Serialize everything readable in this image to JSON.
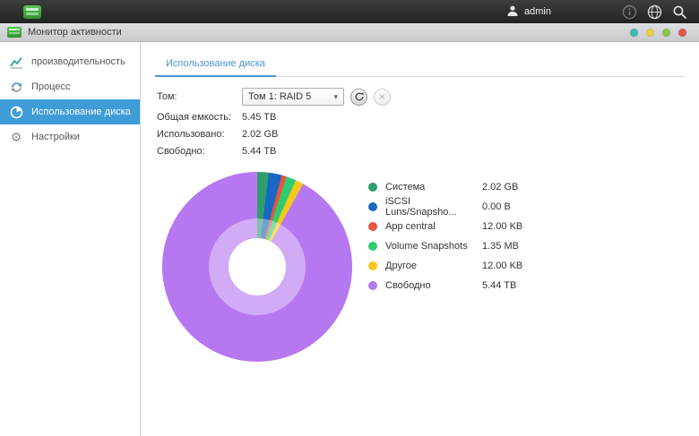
{
  "topbar": {
    "user": "admin",
    "icons": {
      "logo": "app-logo-icon",
      "user": "user-icon",
      "info": "info-icon",
      "globe": "globe-icon",
      "search": "search-icon"
    }
  },
  "window": {
    "title": "Монитор активности",
    "controls": {
      "teal": "#3fb9b4",
      "yellow": "#e6d04a",
      "green": "#8bc34a",
      "red": "#e2574c"
    }
  },
  "sidebar": {
    "items": [
      {
        "label": "производительность",
        "selected": false
      },
      {
        "label": "Процесс",
        "selected": false
      },
      {
        "label": "Использование диска",
        "selected": true
      },
      {
        "label": "Настройки",
        "selected": false
      }
    ]
  },
  "main": {
    "tab": "Использование диска",
    "form": {
      "volume_label": "Том:",
      "volume_value": "Том 1: RAID 5",
      "capacity_label": "Общая емкость:",
      "capacity_value": "5.45 TB",
      "used_label": "Использовано:",
      "used_value": "2.02 GB",
      "free_label": "Свободно:",
      "free_value": "5.44 TB"
    }
  },
  "chart_data": {
    "type": "pie",
    "donut": true,
    "title": "Использование диска",
    "legend_position": "right",
    "slices": [
      {
        "label": "Система",
        "value": "2.02 GB",
        "color": "#2e9e6e",
        "sweep_deg": 7
      },
      {
        "label": "iSCSI Luns/Snapsho...",
        "value": "0.00 B",
        "color": "#1867c0",
        "sweep_deg": 8
      },
      {
        "label": "App central",
        "value": "12.00 KB",
        "color": "#e8523f",
        "sweep_deg": 3
      },
      {
        "label": "Volume Snapshots",
        "value": "1.35 MB",
        "color": "#2ecc71",
        "sweep_deg": 6
      },
      {
        "label": "Другое",
        "value": "12.00 KB",
        "color": "#f5c71a",
        "sweep_deg": 5
      },
      {
        "label": "Свободно",
        "value": "5.44 TB",
        "color": "#b678f0",
        "sweep_deg": 331
      }
    ]
  }
}
